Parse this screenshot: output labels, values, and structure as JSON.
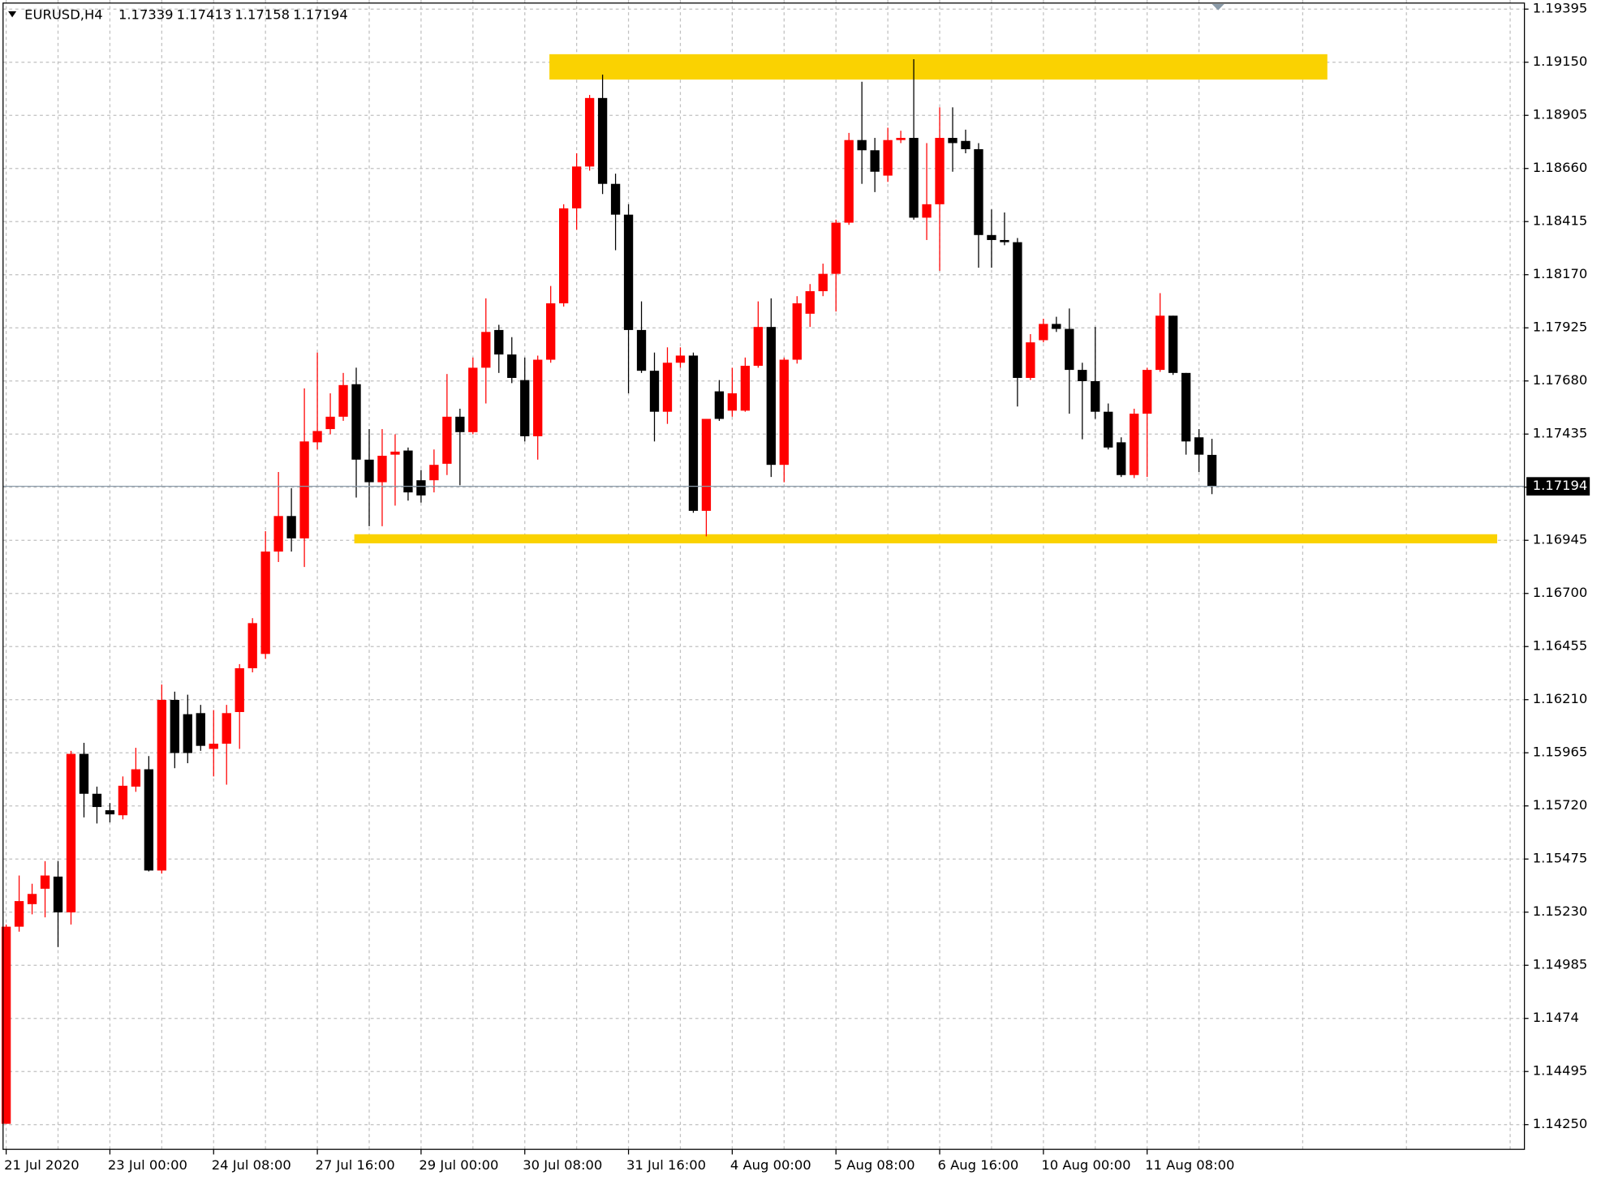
{
  "chart_data": {
    "type": "candlestick",
    "symbol": "EURUSD,H4",
    "up_color": "#ff0000",
    "down_color": "#000000",
    "grid": true,
    "xlim": [
      -0.24,
      117.1
    ],
    "ylim": [
      1.14136,
      1.19437
    ],
    "yticks": [
      {
        "value": 1.1425,
        "label": "1.14250"
      },
      1.14495,
      1.1474,
      1.14985,
      {
        "value": 1.1523,
        "label": "1.15230"
      },
      1.15475,
      {
        "value": 1.1572,
        "label": "1.15720"
      },
      1.15965,
      {
        "value": 1.1621,
        "label": "1.16210"
      },
      1.16455,
      {
        "value": 1.167,
        "label": "1.16700"
      },
      1.16945,
      {
        "value": 1.1719,
        "label": "1.17190"
      },
      1.17435,
      {
        "value": 1.1768,
        "label": "1.17680"
      },
      1.17925,
      {
        "value": 1.1817,
        "label": "1.18170"
      },
      1.18415,
      {
        "value": 1.1866,
        "label": "1.18660"
      },
      1.18905,
      {
        "value": 1.1915,
        "label": "1.19150"
      },
      1.19395
    ],
    "xticks": [
      {
        "value": 0,
        "label": "21 Jul 2020"
      },
      {
        "value": 8,
        "label": "23 Jul 00:00"
      },
      {
        "value": 16,
        "label": "24 Jul 08:00"
      },
      {
        "value": 24,
        "label": "27 Jul 16:00"
      },
      {
        "value": 32,
        "label": "29 Jul 00:00"
      },
      {
        "value": 40,
        "label": "30 Jul 08:00"
      },
      {
        "value": 48,
        "label": "31 Jul 16:00"
      },
      {
        "value": 56,
        "label": "4 Aug 00:00"
      },
      {
        "value": 64,
        "label": "5 Aug 08:00"
      },
      {
        "value": 72,
        "label": "6 Aug 16:00"
      },
      {
        "value": 80,
        "label": "10 Aug 00:00"
      },
      {
        "value": 88,
        "label": "11 Aug 08:00"
      }
    ],
    "open": [
      1.14254,
      1.15163,
      1.15267,
      1.15338,
      1.15394,
      1.15229,
      1.1596,
      1.15776,
      1.157,
      1.15677,
      1.15809,
      1.15889,
      1.15422,
      1.16209,
      1.16143,
      1.16148,
      1.15983,
      1.16007,
      1.16153,
      1.16355,
      1.16421,
      1.16893,
      1.17057,
      1.16954,
      1.17397,
      1.17458,
      1.17515,
      1.17665,
      1.17317,
      1.17213,
      1.1734,
      1.17359,
      1.17222,
      1.17222,
      1.17298,
      1.17515,
      1.17444,
      1.17741,
      1.17915,
      1.17802,
      1.17684,
      1.17425,
      1.17778,
      1.18038,
      1.18476,
      1.18669,
      1.18985,
      1.18589,
      1.18447,
      1.17915,
      1.17727,
      1.17538,
      1.17764,
      1.17797,
      1.17081,
      1.17632,
      1.17543,
      1.17543,
      1.1775,
      1.17929,
      1.17293,
      1.17778,
      1.1799,
      1.18094,
      1.18174,
      1.1841,
      1.18791,
      1.18744,
      1.18627,
      1.18791,
      1.18801,
      1.18433,
      1.18495,
      1.18801,
      1.18787,
      1.18749,
      1.18353,
      1.1833,
      1.1832,
      1.17694,
      1.17868,
      1.17943,
      1.1792,
      1.17731,
      1.17679,
      1.17538,
      1.17397,
      1.17246,
      1.17529,
      1.17731,
      1.17981,
      1.17717,
      1.1742,
      1.17339
    ],
    "high": [
      1.15173,
      1.15399,
      1.15361,
      1.15465,
      1.15465,
      1.15974,
      1.16011,
      1.15809,
      1.15733,
      1.15856,
      1.15988,
      1.1595,
      1.1628,
      1.16247,
      1.16233,
      1.16186,
      1.16162,
      1.16186,
      1.16374,
      1.16586,
      1.16987,
      1.1726,
      1.17185,
      1.17646,
      1.17811,
      1.17623,
      1.17717,
      1.17741,
      1.17458,
      1.17458,
      1.17434,
      1.17373,
      1.17269,
      1.17364,
      1.17712,
      1.17552,
      1.17788,
      1.18061,
      1.17939,
      1.17882,
      1.17788,
      1.17797,
      1.18118,
      1.18495,
      1.1873,
      1.18999,
      1.19093,
      1.18636,
      1.18495,
      1.18047,
      1.17811,
      1.17835,
      1.17835,
      1.17811,
      1.17505,
      1.17684,
      1.17741,
      1.17788,
      1.18047,
      1.18061,
      1.17788,
      1.18071,
      1.18127,
      1.18221,
      1.18424,
      1.18824,
      1.1906,
      1.18801,
      1.18848,
      1.18834,
      1.19164,
      1.18777,
      1.18942,
      1.18942,
      1.18839,
      1.18777,
      1.18471,
      1.18457,
      1.18339,
      1.17896,
      1.17967,
      1.17976,
      1.18014,
      1.17764,
      1.17929,
      1.17576,
      1.1742,
      1.17552,
      1.17741,
      1.18085,
      1.17981,
      1.17717,
      1.17458,
      1.17413
    ],
    "low": [
      1.14254,
      1.1514,
      1.1522,
      1.15206,
      1.15069,
      1.15173,
      1.15667,
      1.15639,
      1.15644,
      1.15658,
      1.15785,
      1.15418,
      1.15408,
      1.15894,
      1.15917,
      1.15974,
      1.15856,
      1.15818,
      1.15983,
      1.16336,
      1.16398,
      1.16845,
      1.16893,
      1.16822,
      1.17364,
      1.17434,
      1.17496,
      1.17142,
      1.1701,
      1.1701,
      1.17105,
      1.17128,
      1.17119,
      1.17166,
      1.17246,
      1.17199,
      1.17434,
      1.17576,
      1.17717,
      1.1767,
      1.17401,
      1.17317,
      1.17764,
      1.18023,
      1.18377,
      1.1865,
      1.18542,
      1.18283,
      1.17623,
      1.17717,
      1.17401,
      1.17482,
      1.17741,
      1.17072,
      1.16963,
      1.17496,
      1.17515,
      1.17538,
      1.17741,
      1.17237,
      1.17213,
      1.1776,
      1.17929,
      1.18071,
      1.18,
      1.184,
      1.18589,
      1.18551,
      1.18598,
      1.18777,
      1.18424,
      1.1833,
      1.18188,
      1.18645,
      1.1873,
      1.18202,
      1.18202,
      1.18306,
      1.17562,
      1.17684,
      1.17858,
      1.17906,
      1.17529,
      1.17411,
      1.17505,
      1.17364,
      1.17237,
      1.17232,
      1.17237,
      1.17722,
      1.17708,
      1.1734,
      1.1726,
      1.17158
    ],
    "close": [
      1.15163,
      1.15281,
      1.15314,
      1.15399,
      1.15229,
      1.1596,
      1.15776,
      1.15715,
      1.15681,
      1.15813,
      1.15889,
      1.15422,
      1.16209,
      1.15964,
      1.15964,
      1.15997,
      1.16007,
      1.16148,
      1.16355,
      1.16563,
      1.16893,
      1.17057,
      1.16954,
      1.17401,
      1.17449,
      1.17515,
      1.17661,
      1.17317,
      1.17213,
      1.17335,
      1.17354,
      1.17166,
      1.17152,
      1.17293,
      1.17515,
      1.17444,
      1.17741,
      1.17906,
      1.17802,
      1.17694,
      1.17425,
      1.17778,
      1.18038,
      1.18476,
      1.18669,
      1.18985,
      1.18589,
      1.18447,
      1.17915,
      1.17727,
      1.17538,
      1.17764,
      1.17797,
      1.17081,
      1.17505,
      1.17505,
      1.17623,
      1.1775,
      1.17929,
      1.17293,
      1.17778,
      1.18038,
      1.18094,
      1.18174,
      1.1841,
      1.18791,
      1.18744,
      1.18645,
      1.18791,
      1.18801,
      1.18433,
      1.18495,
      1.18801,
      1.18777,
      1.18749,
      1.18353,
      1.1833,
      1.1832,
      1.17694,
      1.17858,
      1.17943,
      1.1792,
      1.17731,
      1.17679,
      1.17538,
      1.17373,
      1.17246,
      1.17529,
      1.17731,
      1.17981,
      1.17717,
      1.17401,
      1.1734,
      1.17194
    ],
    "zones": [
      {
        "color": "#fad201",
        "top": 1.19187,
        "bottom": 1.1907,
        "from": 41.9,
        "to": 101.9
      },
      {
        "color": "#fad201",
        "top": 1.16973,
        "bottom": 1.16931,
        "from": 26.85,
        "to": 115
      }
    ]
  }
}
